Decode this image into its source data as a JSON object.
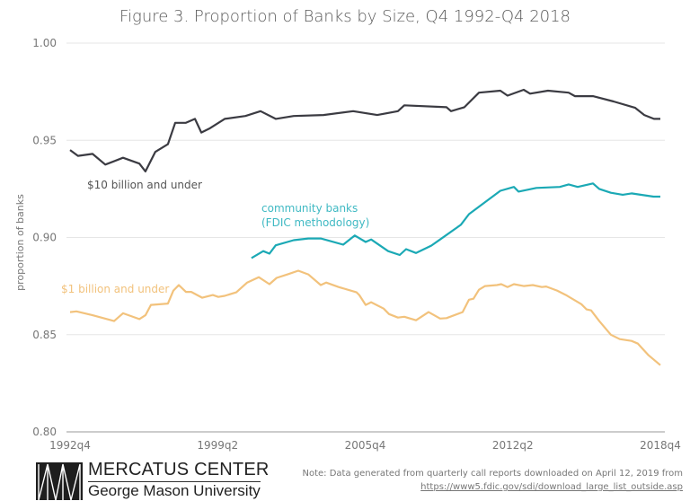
{
  "chart_data": {
    "type": "line",
    "title": "Figure 3. Proportion of Banks by Size, Q4 1992-Q4 2018",
    "xlabel": "",
    "ylabel": "proportion of banks",
    "xlim": [
      1992.75,
      2018.75
    ],
    "ylim": [
      0.8,
      1.0
    ],
    "x_ticks": [
      {
        "x": 1992.75,
        "label": "1992q4"
      },
      {
        "x": 1999.25,
        "label": "1999q2"
      },
      {
        "x": 2005.75,
        "label": "2005q4"
      },
      {
        "x": 2012.25,
        "label": "2012q2"
      },
      {
        "x": 2018.75,
        "label": "2018q4"
      }
    ],
    "y_ticks": [
      {
        "y": 0.8,
        "label": "0.80"
      },
      {
        "y": 0.85,
        "label": "0.85"
      },
      {
        "y": 0.9,
        "label": "0.90"
      },
      {
        "y": 0.95,
        "label": "0.95"
      },
      {
        "y": 1.0,
        "label": "1.00"
      }
    ],
    "grid": "horizontal",
    "series": [
      {
        "name": "$10 billion and under",
        "color": "#3b3b42",
        "points": [
          [
            1992.75,
            0.945
          ],
          [
            1993.1,
            0.942
          ],
          [
            1993.74,
            0.943
          ],
          [
            1994.3,
            0.9375
          ],
          [
            1995.08,
            0.941
          ],
          [
            1995.8,
            0.938
          ],
          [
            1996.07,
            0.934
          ],
          [
            1996.5,
            0.944
          ],
          [
            1997.06,
            0.948
          ],
          [
            1997.38,
            0.959
          ],
          [
            1997.85,
            0.959
          ],
          [
            1998.25,
            0.961
          ],
          [
            1998.53,
            0.954
          ],
          [
            1998.88,
            0.956
          ],
          [
            1999.56,
            0.961
          ],
          [
            2000.47,
            0.9625
          ],
          [
            2001.14,
            0.965
          ],
          [
            2001.81,
            0.961
          ],
          [
            2002.6,
            0.9625
          ],
          [
            2003.91,
            0.963
          ],
          [
            2005.22,
            0.965
          ],
          [
            2006.28,
            0.963
          ],
          [
            2007.19,
            0.965
          ],
          [
            2007.47,
            0.968
          ],
          [
            2009.33,
            0.967
          ],
          [
            2009.53,
            0.965
          ],
          [
            2010.12,
            0.967
          ],
          [
            2010.76,
            0.9745
          ],
          [
            2011.7,
            0.9755
          ],
          [
            2012.02,
            0.973
          ],
          [
            2012.73,
            0.976
          ],
          [
            2013.01,
            0.974
          ],
          [
            2013.8,
            0.9755
          ],
          [
            2014.71,
            0.9745
          ],
          [
            2014.99,
            0.9727
          ],
          [
            2015.78,
            0.9727
          ],
          [
            2016.69,
            0.97
          ],
          [
            2017.64,
            0.9667
          ],
          [
            2018.04,
            0.963
          ],
          [
            2018.47,
            0.961
          ],
          [
            2018.75,
            0.961
          ]
        ]
      },
      {
        "name": "community banks (FDIC methodology)",
        "name_lines": [
          "community banks",
          "(FDIC methodology)"
        ],
        "color": "#1ba9b5",
        "points": [
          [
            2000.74,
            0.8894
          ],
          [
            2001.26,
            0.893
          ],
          [
            2001.53,
            0.8917
          ],
          [
            2001.81,
            0.896
          ],
          [
            2002.6,
            0.8986
          ],
          [
            2003.24,
            0.8995
          ],
          [
            2003.79,
            0.8995
          ],
          [
            2004.78,
            0.8963
          ],
          [
            2005.29,
            0.901
          ],
          [
            2005.77,
            0.8977
          ],
          [
            2006.01,
            0.899
          ],
          [
            2006.76,
            0.893
          ],
          [
            2007.27,
            0.891
          ],
          [
            2007.55,
            0.894
          ],
          [
            2007.99,
            0.892
          ],
          [
            2008.66,
            0.8958
          ],
          [
            2009.05,
            0.899
          ],
          [
            2009.96,
            0.9065
          ],
          [
            2010.32,
            0.912
          ],
          [
            2011.7,
            0.924
          ],
          [
            2012.3,
            0.926
          ],
          [
            2012.5,
            0.9236
          ],
          [
            2013.29,
            0.9255
          ],
          [
            2014.32,
            0.926
          ],
          [
            2014.71,
            0.9273
          ],
          [
            2015.11,
            0.926
          ],
          [
            2015.78,
            0.9278
          ],
          [
            2016.06,
            0.925
          ],
          [
            2016.57,
            0.923
          ],
          [
            2017.09,
            0.922
          ],
          [
            2017.48,
            0.9227
          ],
          [
            2017.88,
            0.922
          ],
          [
            2018.45,
            0.921
          ],
          [
            2018.75,
            0.921
          ]
        ]
      },
      {
        "name": "$1 billion and under",
        "color": "#f2c27c",
        "points": [
          [
            1992.75,
            0.8616
          ],
          [
            1993.03,
            0.862
          ],
          [
            1993.74,
            0.86
          ],
          [
            1994.69,
            0.857
          ],
          [
            1995.08,
            0.861
          ],
          [
            1995.8,
            0.858
          ],
          [
            1996.07,
            0.86
          ],
          [
            1996.31,
            0.8653
          ],
          [
            1997.06,
            0.866
          ],
          [
            1997.3,
            0.8727
          ],
          [
            1997.54,
            0.8755
          ],
          [
            1997.85,
            0.872
          ],
          [
            1998.09,
            0.872
          ],
          [
            1998.57,
            0.869
          ],
          [
            1999.04,
            0.8704
          ],
          [
            1999.28,
            0.8694
          ],
          [
            1999.56,
            0.87
          ],
          [
            2000.07,
            0.8718
          ],
          [
            2000.55,
            0.8768
          ],
          [
            2001.06,
            0.8796
          ],
          [
            2001.53,
            0.876
          ],
          [
            2001.85,
            0.8792
          ],
          [
            2002.33,
            0.881
          ],
          [
            2002.8,
            0.8829
          ],
          [
            2003.24,
            0.881
          ],
          [
            2003.79,
            0.8755
          ],
          [
            2004.03,
            0.8768
          ],
          [
            2004.58,
            0.8745
          ],
          [
            2005.37,
            0.8718
          ],
          [
            2005.49,
            0.8704
          ],
          [
            2005.77,
            0.8653
          ],
          [
            2006.01,
            0.8667
          ],
          [
            2006.56,
            0.8634
          ],
          [
            2006.8,
            0.8606
          ],
          [
            2007.19,
            0.8588
          ],
          [
            2007.47,
            0.8592
          ],
          [
            2007.99,
            0.8574
          ],
          [
            2008.54,
            0.8616
          ],
          [
            2009.05,
            0.8583
          ],
          [
            2009.33,
            0.8585
          ],
          [
            2010.04,
            0.8616
          ],
          [
            2010.32,
            0.868
          ],
          [
            2010.52,
            0.8685
          ],
          [
            2010.76,
            0.8731
          ],
          [
            2011.03,
            0.875
          ],
          [
            2011.55,
            0.8755
          ],
          [
            2011.74,
            0.876
          ],
          [
            2012.02,
            0.8745
          ],
          [
            2012.3,
            0.876
          ],
          [
            2012.73,
            0.875
          ],
          [
            2013.13,
            0.8755
          ],
          [
            2013.53,
            0.8745
          ],
          [
            2013.72,
            0.8748
          ],
          [
            2014.2,
            0.8727
          ],
          [
            2014.59,
            0.8704
          ],
          [
            2015.27,
            0.8657
          ],
          [
            2015.5,
            0.863
          ],
          [
            2015.7,
            0.8625
          ],
          [
            2016.06,
            0.857
          ],
          [
            2016.57,
            0.85
          ],
          [
            2016.96,
            0.8477
          ],
          [
            2017.48,
            0.8468
          ],
          [
            2017.76,
            0.8454
          ],
          [
            2018.23,
            0.8394
          ],
          [
            2018.75,
            0.8343
          ]
        ]
      }
    ]
  },
  "footer": {
    "logo_name": "MERCATUS CENTER",
    "logo_university": "George Mason University",
    "note_line1": "Note: Data generated from quarterly call reports downloaded on April 12, 2019 from",
    "note_link": "https://www5.fdic.gov/sdi/download_large_list_outside.asp"
  }
}
